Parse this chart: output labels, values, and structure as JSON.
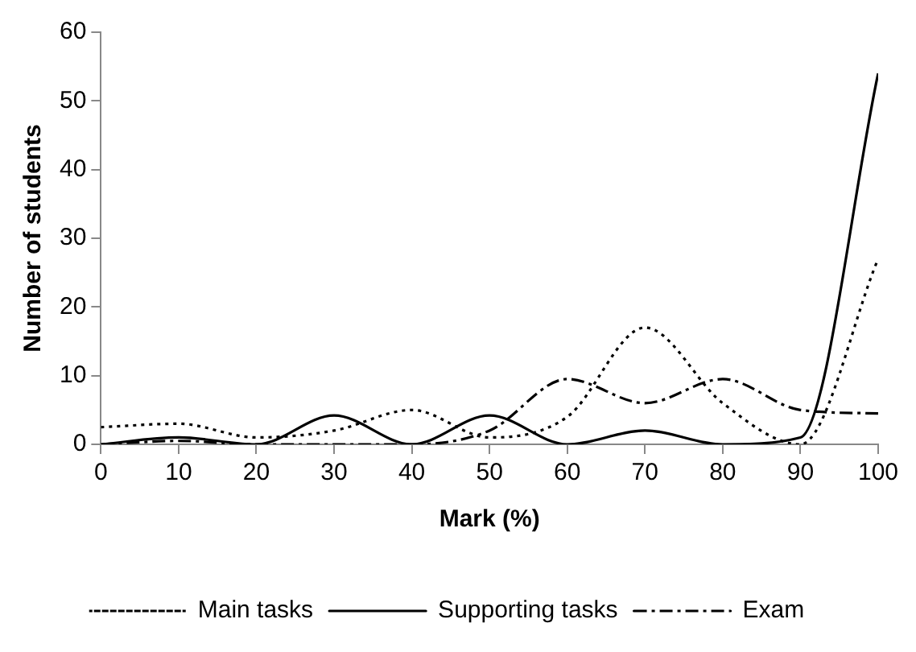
{
  "chart_data": {
    "type": "line",
    "xlabel": "Mark (%)",
    "ylabel": "Number of students",
    "x": [
      0,
      10,
      20,
      30,
      40,
      50,
      60,
      70,
      80,
      90,
      100
    ],
    "series": [
      {
        "name": "Main tasks",
        "color": "#000000",
        "line_style": "dotted",
        "values": [
          2.5,
          3,
          1,
          2,
          5,
          1,
          4,
          17,
          6,
          0,
          27
        ]
      },
      {
        "name": "Supporting tasks",
        "color": "#000000",
        "line_style": "solid",
        "values": [
          0,
          1,
          0,
          4.2,
          0,
          4.2,
          0,
          2,
          0,
          1,
          54
        ]
      },
      {
        "name": "Exam",
        "color": "#000000",
        "line_style": "dashed",
        "values": [
          0,
          0.5,
          0,
          0,
          0,
          2,
          9.5,
          6,
          9.5,
          5,
          4.5
        ]
      }
    ],
    "xlim": [
      0,
      100
    ],
    "xticks": [
      0,
      10,
      20,
      30,
      40,
      50,
      60,
      70,
      80,
      90,
      100
    ],
    "ylim": [
      0,
      60
    ],
    "yticks": [
      0,
      10,
      20,
      30,
      40,
      50,
      60
    ],
    "grid": false,
    "legend": "bottom",
    "marker": "none"
  }
}
